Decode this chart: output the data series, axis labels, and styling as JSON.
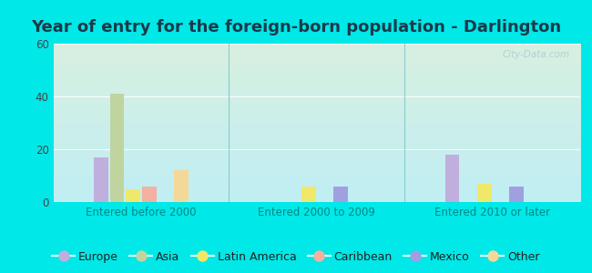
{
  "title": "Year of entry for the foreign-born population - Darlington",
  "groups": [
    "Entered before 2000",
    "Entered 2000 to 2009",
    "Entered 2010 or later"
  ],
  "categories": [
    "Europe",
    "Asia",
    "Latin America",
    "Caribbean",
    "Mexico",
    "Other"
  ],
  "colors": [
    "#c0aedd",
    "#c0d4a0",
    "#f0e868",
    "#f4b0a0",
    "#a0a0e0",
    "#f4d898"
  ],
  "values": [
    [
      17,
      41,
      5,
      6,
      0,
      12
    ],
    [
      0,
      0,
      6,
      0,
      6,
      0
    ],
    [
      18,
      0,
      7,
      0,
      6,
      0
    ]
  ],
  "ylim": [
    0,
    60
  ],
  "yticks": [
    0,
    20,
    40,
    60
  ],
  "bg_color_tl": "#d8f0e0",
  "bg_color_br": "#c8eef0",
  "outer_bg": "#00e8e8",
  "watermark": "City-Data.com",
  "title_fontsize": 13,
  "axis_label_fontsize": 8.5,
  "legend_fontsize": 9,
  "title_color": "#1a3a4a",
  "xticklabel_color": "#008888",
  "ytick_color": "#444444"
}
